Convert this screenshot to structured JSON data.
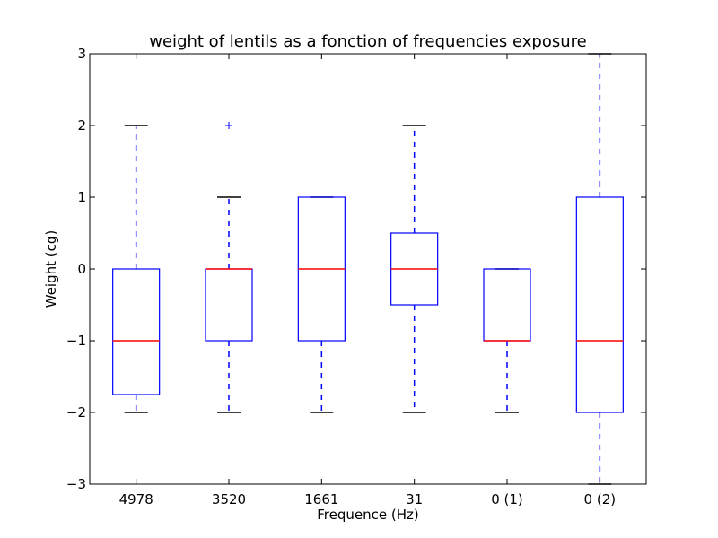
{
  "chart_data": {
    "type": "boxplot",
    "title": "weight of lentils as a fonction of frequencies exposure",
    "xlabel": "Frequence (Hz)",
    "ylabel": "Weight (cg)",
    "ylim": [
      -3,
      3
    ],
    "yticks": [
      -3,
      -2,
      -1,
      0,
      1,
      2,
      3
    ],
    "ytick_labels": [
      "−3",
      "−2",
      "−1",
      "0",
      "1",
      "2",
      "3"
    ],
    "grid": false,
    "categories": [
      "4978",
      "3520",
      "1661",
      "31",
      "0 (1)",
      "0 (2)"
    ],
    "boxes": [
      {
        "whisker_low": -2,
        "q1": -1.75,
        "median": -1,
        "q3": 0,
        "whisker_high": 2,
        "fliers": []
      },
      {
        "whisker_low": -2,
        "q1": -1,
        "median": 0,
        "q3": 0,
        "whisker_high": 1,
        "fliers": [
          2
        ]
      },
      {
        "whisker_low": -2,
        "q1": -1,
        "median": 0,
        "q3": 1,
        "whisker_high": 1,
        "fliers": []
      },
      {
        "whisker_low": -2,
        "q1": -0.5,
        "median": 0,
        "q3": 0.5,
        "whisker_high": 2,
        "fliers": []
      },
      {
        "whisker_low": -2,
        "q1": -1,
        "median": -1,
        "q3": 0,
        "whisker_high": 0,
        "fliers": []
      },
      {
        "whisker_low": -3,
        "q1": -2,
        "median": -1,
        "q3": 1,
        "whisker_high": 3,
        "fliers": []
      }
    ],
    "colors": {
      "box": "#0000ff",
      "median": "#ff0000",
      "whisker": "#0000ff",
      "cap": "#000000",
      "flier": "#0000ff",
      "axes": "#000000"
    }
  }
}
